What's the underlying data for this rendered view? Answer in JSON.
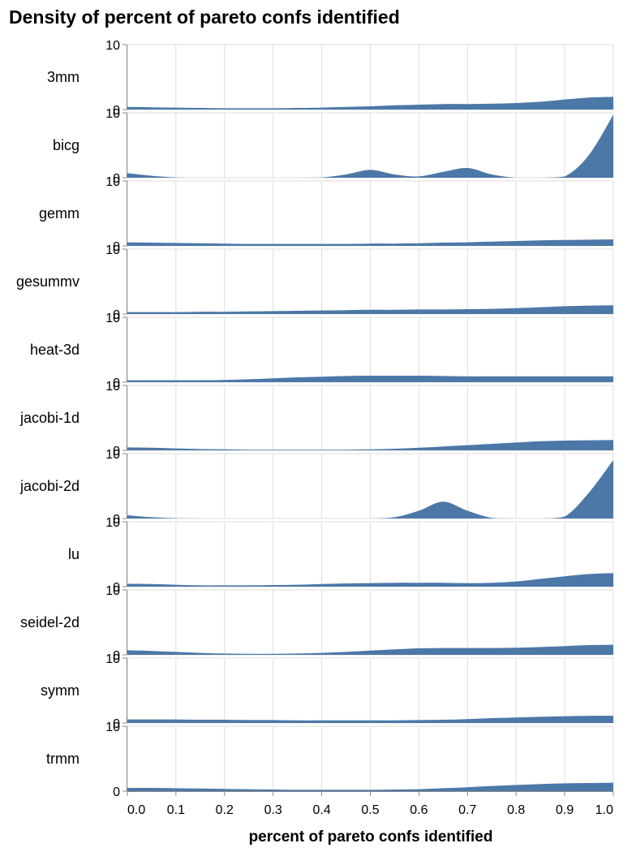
{
  "chart_data": {
    "type": "area",
    "title": "Density of percent of pareto confs identified",
    "xlabel": "percent of pareto confs identified",
    "ylabel": "",
    "xlim": [
      0,
      1
    ],
    "ylim": [
      0,
      10
    ],
    "x_ticks": [
      "0.0",
      "0.1",
      "0.2",
      "0.3",
      "0.4",
      "0.5",
      "0.6",
      "0.7",
      "0.8",
      "0.9",
      "1.0"
    ],
    "y_ticks": [
      "0",
      "10"
    ],
    "grid": true,
    "color": "#4c78a8",
    "x": [
      0.0,
      0.05,
      0.1,
      0.15,
      0.2,
      0.25,
      0.3,
      0.35,
      0.4,
      0.45,
      0.5,
      0.55,
      0.6,
      0.65,
      0.7,
      0.75,
      0.8,
      0.85,
      0.9,
      0.95,
      1.0
    ],
    "series": [
      {
        "name": "3mm",
        "values": [
          0.4,
          0.35,
          0.3,
          0.25,
          0.2,
          0.2,
          0.2,
          0.25,
          0.3,
          0.4,
          0.5,
          0.65,
          0.75,
          0.85,
          0.85,
          0.9,
          1.0,
          1.2,
          1.55,
          1.85,
          1.95
        ]
      },
      {
        "name": "bicg",
        "values": [
          0.7,
          0.3,
          0.05,
          0,
          0,
          0,
          0,
          0,
          0.05,
          0.5,
          1.2,
          0.5,
          0.2,
          0.9,
          1.5,
          0.5,
          0,
          0,
          0.2,
          3.5,
          9.7
        ]
      },
      {
        "name": "gemm",
        "values": [
          0.55,
          0.5,
          0.45,
          0.4,
          0.35,
          0.3,
          0.3,
          0.3,
          0.3,
          0.3,
          0.35,
          0.35,
          0.4,
          0.5,
          0.55,
          0.65,
          0.75,
          0.85,
          0.9,
          0.95,
          1.0
        ]
      },
      {
        "name": "gesummv",
        "values": [
          0.3,
          0.3,
          0.3,
          0.35,
          0.35,
          0.4,
          0.45,
          0.5,
          0.55,
          0.6,
          0.65,
          0.65,
          0.7,
          0.7,
          0.75,
          0.8,
          0.9,
          1.05,
          1.2,
          1.3,
          1.35
        ]
      },
      {
        "name": "heat-3d",
        "values": [
          0.3,
          0.3,
          0.3,
          0.3,
          0.35,
          0.45,
          0.6,
          0.75,
          0.85,
          0.95,
          1.0,
          1.0,
          1.0,
          0.95,
          0.9,
          0.9,
          0.9,
          0.9,
          0.9,
          0.9,
          0.9
        ]
      },
      {
        "name": "jacobi-1d",
        "values": [
          0.45,
          0.4,
          0.3,
          0.2,
          0.15,
          0.1,
          0.1,
          0.1,
          0.1,
          0.1,
          0.15,
          0.25,
          0.4,
          0.6,
          0.8,
          1.0,
          1.2,
          1.4,
          1.5,
          1.55,
          1.6
        ]
      },
      {
        "name": "jacobi-2d",
        "values": [
          0.5,
          0.2,
          0.05,
          0,
          0,
          0,
          0,
          0,
          0,
          0,
          0,
          0.2,
          1.2,
          2.6,
          1.2,
          0.1,
          0,
          0,
          0.3,
          4.0,
          9.0
        ]
      },
      {
        "name": "lu",
        "values": [
          0.45,
          0.4,
          0.3,
          0.2,
          0.2,
          0.2,
          0.25,
          0.3,
          0.4,
          0.5,
          0.55,
          0.6,
          0.6,
          0.6,
          0.55,
          0.6,
          0.8,
          1.2,
          1.6,
          1.95,
          2.1
        ]
      },
      {
        "name": "seidel-2d",
        "values": [
          0.7,
          0.6,
          0.45,
          0.3,
          0.2,
          0.15,
          0.15,
          0.2,
          0.3,
          0.45,
          0.65,
          0.85,
          1.0,
          1.05,
          1.05,
          1.05,
          1.1,
          1.2,
          1.35,
          1.5,
          1.55
        ]
      },
      {
        "name": "symm",
        "values": [
          0.55,
          0.55,
          0.55,
          0.5,
          0.5,
          0.45,
          0.45,
          0.4,
          0.4,
          0.4,
          0.4,
          0.4,
          0.45,
          0.5,
          0.6,
          0.75,
          0.85,
          0.95,
          1.05,
          1.1,
          1.1
        ]
      },
      {
        "name": "trmm",
        "values": [
          0.5,
          0.5,
          0.45,
          0.4,
          0.35,
          0.3,
          0.25,
          0.2,
          0.2,
          0.2,
          0.2,
          0.25,
          0.3,
          0.45,
          0.6,
          0.8,
          0.95,
          1.1,
          1.2,
          1.25,
          1.3
        ]
      }
    ]
  }
}
